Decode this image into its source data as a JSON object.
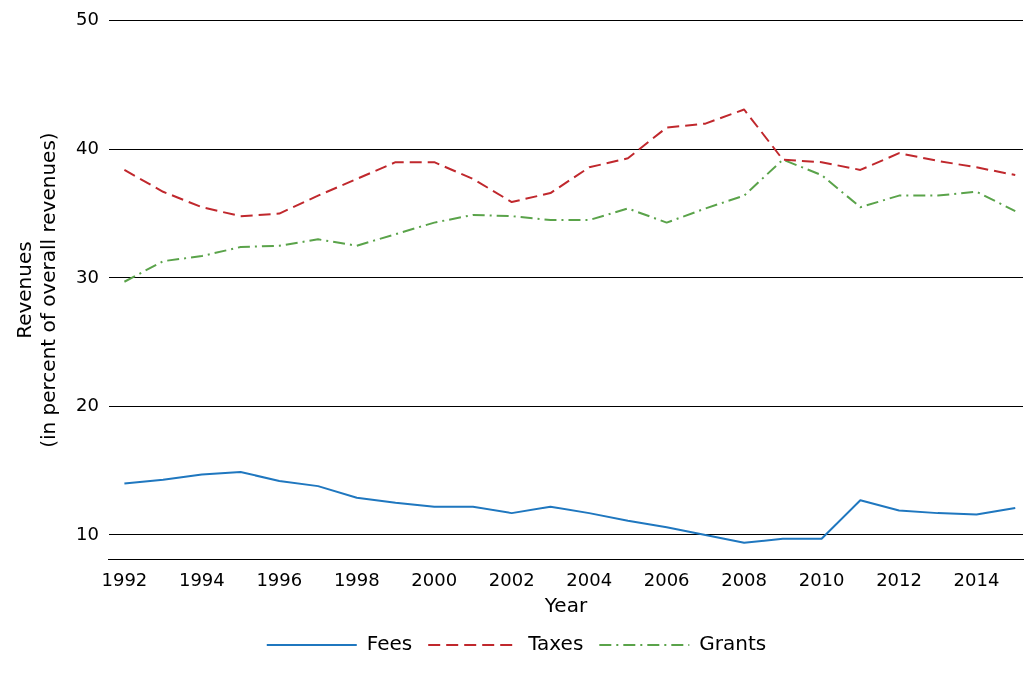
{
  "chart_data": {
    "type": "line",
    "xlabel": "Year",
    "ylabel": "Revenues\n(in percent of overall revenues)",
    "x": [
      1992,
      1993,
      1994,
      1995,
      1996,
      1997,
      1998,
      1999,
      2000,
      2001,
      2002,
      2003,
      2004,
      2005,
      2006,
      2007,
      2008,
      2009,
      2010,
      2011,
      2012,
      2013,
      2014,
      2015
    ],
    "series": [
      {
        "name": "Fees",
        "color": "#1f77bf",
        "line_style": "solid",
        "values": [
          14.0,
          14.3,
          14.7,
          14.9,
          14.2,
          13.8,
          12.9,
          12.5,
          12.2,
          12.2,
          11.7,
          12.2,
          11.7,
          11.1,
          10.6,
          10.0,
          9.4,
          9.7,
          9.7,
          12.7,
          11.9,
          11.7,
          11.6,
          12.1
        ]
      },
      {
        "name": "Taxes",
        "color": "#c0282d",
        "line_style": "dashed",
        "values": [
          38.4,
          36.7,
          35.5,
          34.8,
          35.0,
          36.4,
          37.7,
          39.0,
          39.0,
          37.7,
          35.9,
          36.6,
          38.6,
          39.3,
          41.7,
          42.0,
          43.1,
          39.2,
          39.0,
          38.4,
          39.7,
          39.1,
          38.6,
          38.0
        ]
      },
      {
        "name": "Grants",
        "color": "#5aa34a",
        "line_style": "dashdot",
        "values": [
          29.7,
          31.3,
          31.7,
          32.4,
          32.5,
          33.0,
          32.5,
          33.4,
          34.3,
          34.9,
          34.8,
          34.5,
          34.5,
          35.4,
          34.3,
          35.4,
          36.4,
          39.2,
          38.0,
          35.5,
          36.4,
          36.4,
          36.7,
          35.2
        ]
      }
    ],
    "xlim": [
      1991.6,
      2015.2
    ],
    "xticks": [
      1992,
      1994,
      1996,
      1998,
      2000,
      2002,
      2004,
      2006,
      2008,
      2010,
      2012,
      2014
    ],
    "ylim": [
      8.1,
      50
    ],
    "yticks": [
      10,
      20,
      30,
      40,
      50
    ],
    "grid": "y",
    "legend": "bottom",
    "marker": "none"
  }
}
